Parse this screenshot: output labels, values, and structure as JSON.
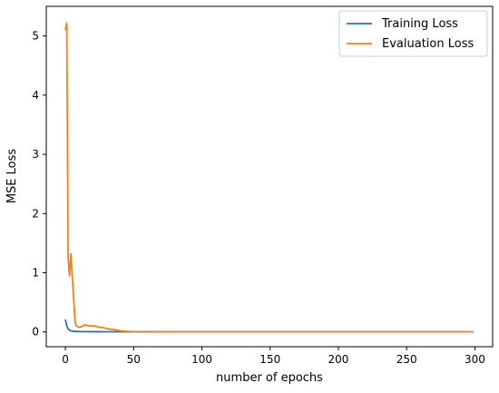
{
  "chart_data": {
    "type": "line",
    "xlabel": "number of epochs",
    "ylabel": "MSE Loss",
    "xlim": [
      -14,
      313
    ],
    "ylim": [
      -0.25,
      5.5
    ],
    "xticks": [
      0,
      50,
      100,
      150,
      200,
      250,
      300
    ],
    "yticks": [
      0,
      1,
      2,
      3,
      4,
      5
    ],
    "grid": false,
    "legend_position": "top-right",
    "series": [
      {
        "name": "Training Loss",
        "color": "#1f77b4",
        "x": [
          0,
          1,
          2,
          3,
          4,
          5,
          6,
          8,
          10,
          15,
          20,
          30,
          50,
          100,
          150,
          200,
          250,
          299
        ],
        "y": [
          0.21,
          0.1,
          0.05,
          0.03,
          0.02,
          0.015,
          0.01,
          0.008,
          0.006,
          0.005,
          0.004,
          0.003,
          0.002,
          0.001,
          0.001,
          0.001,
          0.001,
          0.001
        ]
      },
      {
        "name": "Evaluation Loss",
        "color": "#ff7f0e",
        "x": [
          0,
          1,
          2,
          3,
          4,
          5,
          6,
          7,
          8,
          9,
          10,
          12,
          14,
          16,
          18,
          20,
          22,
          24,
          26,
          28,
          30,
          32,
          35,
          38,
          40,
          45,
          50,
          60,
          80,
          100,
          150,
          200,
          250,
          299
        ],
        "y": [
          5.1,
          5.22,
          1.25,
          0.95,
          1.32,
          0.95,
          0.6,
          0.2,
          0.1,
          0.09,
          0.08,
          0.09,
          0.12,
          0.11,
          0.1,
          0.1,
          0.1,
          0.08,
          0.08,
          0.07,
          0.06,
          0.05,
          0.04,
          0.03,
          0.02,
          0.01,
          0.005,
          0.003,
          0.002,
          0.001,
          0.001,
          0.001,
          0.001,
          0.001
        ]
      }
    ]
  }
}
